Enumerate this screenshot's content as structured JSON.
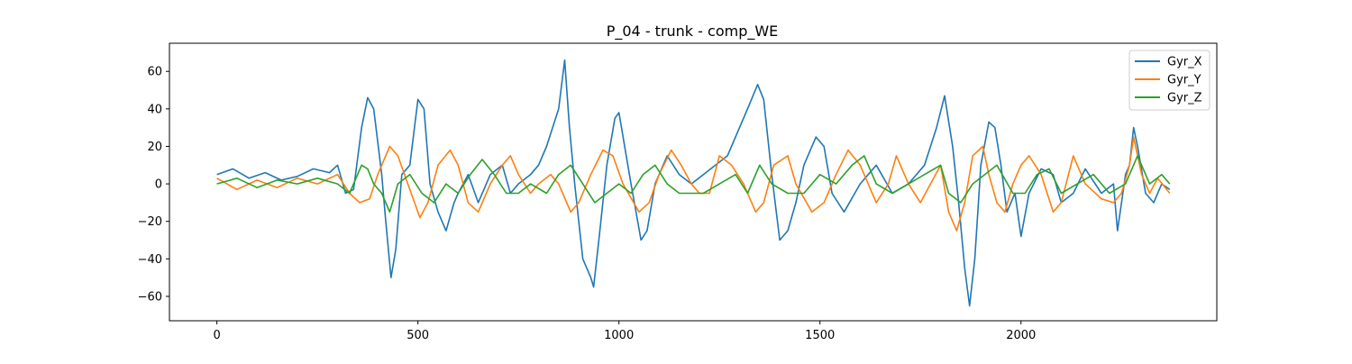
{
  "chart_data": {
    "type": "line",
    "title": "P_04 - trunk - comp_WE",
    "xlabel": "",
    "ylabel": "",
    "xlim": [
      -118,
      2487
    ],
    "ylim": [
      -73,
      75
    ],
    "xticks": [
      0,
      500,
      1000,
      1500,
      2000
    ],
    "yticks": [
      -60,
      -40,
      -20,
      0,
      20,
      40,
      60
    ],
    "grid": false,
    "legend_position": "top-right",
    "series": [
      {
        "name": "Gyr_X",
        "color": "#1f77b4",
        "x": [
          0,
          40,
          80,
          120,
          160,
          200,
          240,
          280,
          300,
          320,
          340,
          360,
          375,
          390,
          410,
          420,
          433,
          445,
          460,
          480,
          500,
          515,
          530,
          550,
          570,
          590,
          600,
          625,
          650,
          680,
          710,
          730,
          750,
          780,
          800,
          820,
          850,
          865,
          877,
          890,
          910,
          930,
          937,
          950,
          970,
          990,
          1000,
          1030,
          1055,
          1070,
          1090,
          1120,
          1150,
          1180,
          1210,
          1240,
          1270,
          1300,
          1320,
          1345,
          1360,
          1380,
          1400,
          1420,
          1440,
          1460,
          1490,
          1510,
          1530,
          1560,
          1600,
          1640,
          1680,
          1720,
          1760,
          1790,
          1810,
          1830,
          1845,
          1860,
          1872,
          1885,
          1900,
          1920,
          1935,
          1950,
          1965,
          1985,
          2000,
          2020,
          2050,
          2080,
          2100,
          2130,
          2160,
          2200,
          2230,
          2240,
          2250,
          2260,
          2270,
          2280,
          2290,
          2310,
          2330,
          2350,
          2370
        ],
        "y": [
          5,
          8,
          3,
          6,
          2,
          4,
          8,
          6,
          10,
          -5,
          -3,
          30,
          46,
          40,
          5,
          -20,
          -50,
          -35,
          5,
          10,
          45,
          40,
          0,
          -15,
          -25,
          -10,
          -5,
          5,
          -10,
          5,
          10,
          -5,
          0,
          5,
          10,
          20,
          40,
          66,
          30,
          0,
          -40,
          -50,
          -55,
          -30,
          10,
          35,
          38,
          0,
          -30,
          -25,
          0,
          15,
          5,
          0,
          5,
          10,
          15,
          30,
          40,
          53,
          45,
          5,
          -30,
          -25,
          -10,
          10,
          25,
          20,
          -5,
          -15,
          0,
          10,
          -5,
          0,
          10,
          30,
          47,
          20,
          -10,
          -45,
          -65,
          -40,
          10,
          33,
          30,
          10,
          -15,
          -5,
          -28,
          -5,
          8,
          5,
          -10,
          -5,
          8,
          -5,
          0,
          -25,
          -10,
          5,
          10,
          30,
          20,
          -5,
          -10,
          0,
          -3
        ]
      },
      {
        "name": "Gyr_Y",
        "color": "#ff7f0e",
        "x": [
          0,
          50,
          100,
          150,
          200,
          250,
          300,
          330,
          355,
          380,
          400,
          430,
          450,
          475,
          505,
          525,
          550,
          580,
          600,
          625,
          650,
          680,
          710,
          730,
          750,
          780,
          800,
          830,
          850,
          880,
          900,
          930,
          960,
          985,
          1010,
          1050,
          1075,
          1100,
          1130,
          1155,
          1180,
          1200,
          1225,
          1250,
          1280,
          1310,
          1340,
          1360,
          1385,
          1420,
          1440,
          1480,
          1510,
          1540,
          1570,
          1600,
          1640,
          1670,
          1690,
          1720,
          1750,
          1775,
          1800,
          1820,
          1840,
          1860,
          1880,
          1905,
          1920,
          1940,
          1960,
          1980,
          2000,
          2020,
          2050,
          2080,
          2100,
          2130,
          2160,
          2200,
          2230,
          2250,
          2270,
          2280,
          2300,
          2320,
          2340,
          2370
        ],
        "y": [
          3,
          -3,
          2,
          -2,
          3,
          0,
          5,
          -5,
          -10,
          -8,
          5,
          20,
          15,
          0,
          -18,
          -10,
          10,
          18,
          10,
          -10,
          -15,
          0,
          10,
          15,
          5,
          -5,
          0,
          5,
          0,
          -15,
          -10,
          5,
          18,
          15,
          0,
          -15,
          -10,
          5,
          18,
          10,
          0,
          -5,
          -5,
          15,
          10,
          0,
          -15,
          -10,
          10,
          15,
          0,
          -15,
          -10,
          5,
          18,
          10,
          -10,
          0,
          15,
          0,
          -10,
          0,
          10,
          -15,
          -25,
          -10,
          15,
          20,
          5,
          -10,
          -15,
          0,
          10,
          15,
          5,
          -15,
          -10,
          15,
          0,
          -8,
          -10,
          -5,
          10,
          25,
          5,
          -5,
          3,
          -5
        ]
      },
      {
        "name": "Gyr_Z",
        "color": "#2ca02c",
        "x": [
          0,
          50,
          100,
          150,
          200,
          250,
          300,
          330,
          360,
          375,
          390,
          410,
          430,
          450,
          480,
          510,
          540,
          570,
          600,
          630,
          660,
          690,
          720,
          750,
          780,
          820,
          850,
          880,
          910,
          940,
          970,
          1000,
          1030,
          1060,
          1090,
          1120,
          1150,
          1180,
          1210,
          1250,
          1290,
          1320,
          1350,
          1380,
          1420,
          1460,
          1500,
          1540,
          1580,
          1610,
          1640,
          1680,
          1720,
          1760,
          1800,
          1820,
          1850,
          1880,
          1910,
          1940,
          1980,
          2010,
          2040,
          2070,
          2100,
          2140,
          2180,
          2220,
          2260,
          2290,
          2320,
          2350,
          2370
        ],
        "y": [
          0,
          3,
          -2,
          2,
          0,
          3,
          0,
          -5,
          10,
          8,
          0,
          -5,
          -15,
          0,
          5,
          -5,
          -10,
          0,
          -5,
          5,
          13,
          5,
          -5,
          -5,
          0,
          -5,
          5,
          10,
          0,
          -10,
          -5,
          0,
          -5,
          5,
          10,
          0,
          -5,
          -5,
          -5,
          0,
          5,
          -5,
          10,
          0,
          -5,
          -5,
          5,
          0,
          10,
          15,
          0,
          -5,
          0,
          5,
          10,
          -5,
          -10,
          0,
          5,
          10,
          -5,
          -5,
          5,
          8,
          -5,
          0,
          5,
          -5,
          0,
          15,
          0,
          5,
          0
        ]
      }
    ]
  }
}
